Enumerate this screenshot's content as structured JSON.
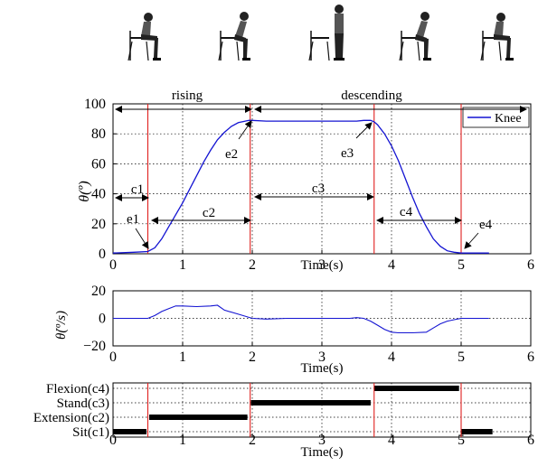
{
  "colors": {
    "line": "#1414d2",
    "phase_marker": "#e0201e",
    "annotation": "#000000",
    "grid": "#000000"
  },
  "icons": [
    "sitting-person-icon",
    "rising-person-icon",
    "standing-person-icon",
    "descending-person-icon",
    "sitting-person-icon"
  ],
  "chart_data": [
    {
      "type": "line",
      "ylabel": "θ(º)",
      "xlabel": "Time(s)",
      "xlim": [
        0,
        6
      ],
      "ylim": [
        0,
        100
      ],
      "xticks": [
        "0",
        "1",
        "2",
        "3",
        "4",
        "5",
        "6"
      ],
      "yticks": [
        "0",
        "20",
        "40",
        "60",
        "80",
        "100"
      ],
      "grid": true,
      "legend": "top-right",
      "phase_lines_x": [
        0.5,
        1.97,
        3.75,
        5.0
      ],
      "region_labels": [
        "rising",
        "descending"
      ],
      "annotations": [
        "c1",
        "c2",
        "c3",
        "c4",
        "e1",
        "e2",
        "e3",
        "e4"
      ],
      "series": [
        {
          "name": "Knee",
          "x": [
            0,
            0.3,
            0.5,
            0.6,
            0.7,
            0.8,
            0.9,
            1.0,
            1.1,
            1.2,
            1.3,
            1.4,
            1.5,
            1.6,
            1.7,
            1.8,
            1.9,
            1.95,
            2.0,
            2.2,
            2.5,
            3.0,
            3.5,
            3.6,
            3.7,
            3.75,
            3.8,
            3.9,
            4.0,
            4.1,
            4.2,
            4.3,
            4.4,
            4.5,
            4.6,
            4.7,
            4.8,
            4.9,
            5.0,
            5.1,
            5.3,
            5.4
          ],
          "y": [
            0.5,
            1,
            1.5,
            4,
            10,
            18,
            26,
            34,
            43,
            52,
            61,
            69,
            76,
            81,
            85,
            87.5,
            88.5,
            89,
            89,
            88.5,
            88.5,
            88.5,
            88.5,
            89,
            89,
            88,
            86,
            80,
            72,
            62,
            50,
            38,
            27,
            18,
            10,
            5,
            2,
            1,
            0.5,
            0.5,
            0.5,
            0.5
          ]
        }
      ]
    },
    {
      "type": "line",
      "ylabel": "θ̇(º/s)",
      "xlabel": "Time(s)",
      "xlim": [
        0,
        6
      ],
      "ylim": [
        -20,
        20
      ],
      "xticks": [
        "0",
        "1",
        "2",
        "3",
        "4",
        "5",
        "6"
      ],
      "yticks": [
        "-20",
        "0",
        "20"
      ],
      "grid": true,
      "series": [
        {
          "name": "",
          "x": [
            0,
            0.3,
            0.5,
            0.6,
            0.7,
            0.8,
            0.9,
            1.0,
            1.2,
            1.4,
            1.5,
            1.6,
            1.8,
            2.0,
            2.2,
            2.5,
            3.0,
            3.4,
            3.5,
            3.6,
            3.7,
            3.8,
            3.9,
            4.0,
            4.1,
            4.3,
            4.5,
            4.6,
            4.7,
            4.8,
            4.9,
            5.0,
            5.2,
            5.4
          ],
          "y": [
            0,
            0,
            0,
            2,
            5,
            7,
            9,
            9,
            8.5,
            9,
            9.5,
            6,
            3,
            0,
            -0.5,
            0,
            0,
            0,
            0.5,
            0,
            -2,
            -5,
            -8,
            -10,
            -10.5,
            -10.5,
            -10,
            -7,
            -4,
            -2,
            -1,
            0,
            0,
            0
          ]
        }
      ]
    },
    {
      "type": "bar",
      "xlabel": "Time(s)",
      "xlim": [
        0,
        6
      ],
      "xticks": [
        "0",
        "1",
        "2",
        "3",
        "4",
        "5",
        "6"
      ],
      "categories": [
        "Sit(c1)",
        "Extension(c2)",
        "Stand(c3)",
        "Flexion(c4)"
      ],
      "segments": [
        {
          "state": "Sit(c1)",
          "start": 0,
          "end": 0.48
        },
        {
          "state": "Extension(c2)",
          "start": 0.52,
          "end": 1.93
        },
        {
          "state": "Stand(c3)",
          "start": 1.98,
          "end": 3.7
        },
        {
          "state": "Flexion(c4)",
          "start": 3.75,
          "end": 4.97
        },
        {
          "state": "Sit(c1)",
          "start": 5.0,
          "end": 5.45
        }
      ],
      "grid": true
    }
  ]
}
